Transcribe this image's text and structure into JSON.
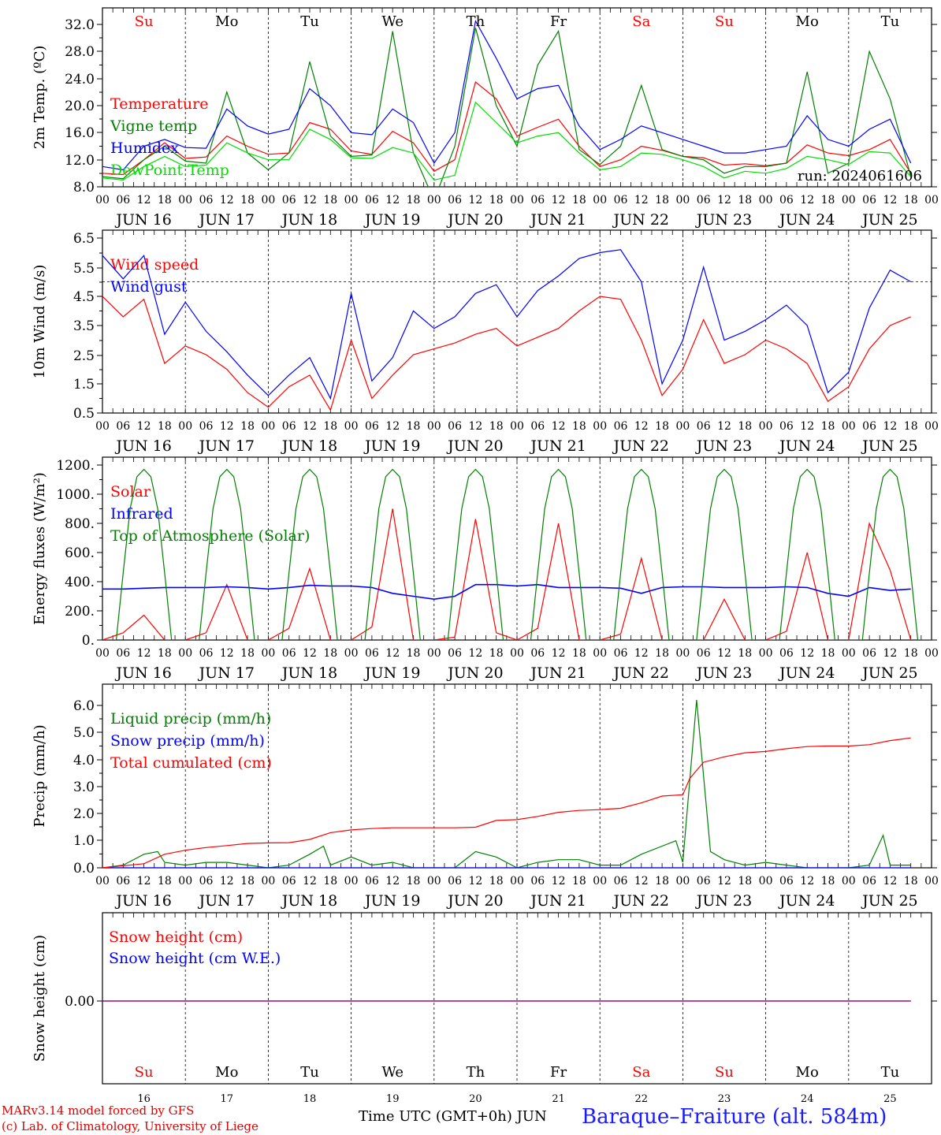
{
  "chart_data": [
    {
      "type": "line",
      "ylabel": "2m Temp. (ºC)",
      "ylim": [
        8.0,
        34.0
      ],
      "yticks": [
        "8.0",
        "12.0",
        "16.0",
        "20.0",
        "24.0",
        "28.0",
        "32.0"
      ],
      "annotation": "run: 2024061606",
      "series": [
        {
          "name": "Temperature",
          "color": "#ff0000",
          "x": [
            0,
            6,
            12,
            18,
            24,
            30,
            36,
            42,
            48,
            54,
            60,
            66,
            72,
            78,
            84,
            90,
            96,
            102,
            108,
            114,
            120,
            126,
            132,
            138,
            144,
            150,
            156,
            162,
            168,
            174,
            180,
            186,
            192,
            198,
            204,
            210,
            216,
            222,
            228,
            234
          ],
          "values": [
            10.0,
            9.8,
            12.0,
            14.5,
            12.2,
            12.4,
            15.5,
            14.0,
            12.8,
            13.0,
            17.5,
            16.5,
            13.3,
            12.8,
            16.2,
            14.5,
            10.3,
            12.0,
            23.5,
            21.0,
            15.5,
            16.8,
            18.0,
            14.0,
            11.0,
            12.0,
            14.0,
            13.4,
            12.5,
            12.3,
            11.2,
            11.4,
            11.1,
            11.5,
            14.2,
            13.0,
            12.6,
            13.5,
            15.0,
            10.0
          ]
        },
        {
          "name": "Vigne temp",
          "color": "#008000",
          "x": [
            0,
            6,
            12,
            18,
            24,
            30,
            36,
            42,
            48,
            54,
            60,
            66,
            72,
            78,
            84,
            90,
            96,
            102,
            108,
            114,
            120,
            126,
            132,
            138,
            144,
            150,
            156,
            162,
            168,
            174,
            180,
            186,
            192,
            198,
            204,
            210,
            216,
            222,
            228,
            234
          ],
          "values": [
            9.5,
            9.2,
            12.0,
            14.0,
            11.8,
            11.5,
            22.0,
            13.0,
            10.5,
            13.0,
            26.5,
            15.5,
            12.5,
            12.7,
            31.0,
            13.0,
            6.0,
            14.0,
            31.5,
            20.0,
            14.0,
            26.0,
            31.0,
            13.5,
            11.3,
            14.0,
            23.0,
            13.5,
            12.5,
            12.0,
            10.0,
            11.0,
            11.0,
            11.5,
            25.0,
            10.0,
            11.5,
            28.0,
            21.0,
            9.5
          ]
        },
        {
          "name": "Humidex",
          "color": "#0000ff",
          "x": [
            0,
            6,
            12,
            18,
            24,
            30,
            36,
            42,
            48,
            54,
            60,
            66,
            72,
            78,
            84,
            90,
            96,
            102,
            108,
            114,
            120,
            126,
            132,
            138,
            144,
            150,
            156,
            162,
            168,
            174,
            180,
            186,
            192,
            198,
            204,
            210,
            216,
            222,
            228,
            234
          ],
          "values": [
            11.0,
            10.5,
            14.0,
            15.0,
            13.8,
            13.7,
            19.5,
            17.0,
            15.8,
            16.5,
            22.5,
            20.0,
            16.0,
            15.7,
            19.5,
            17.5,
            11.5,
            16.0,
            32.5,
            27.0,
            21.0,
            22.5,
            23.0,
            17.0,
            13.5,
            15.0,
            17.0,
            16.0,
            15.0,
            14.0,
            13.0,
            13.0,
            13.5,
            14.0,
            18.5,
            15.0,
            14.0,
            16.5,
            18.0,
            11.5
          ]
        },
        {
          "name": "DewPoint Temp",
          "color": "#00dd00",
          "x": [
            0,
            6,
            12,
            18,
            24,
            30,
            36,
            42,
            48,
            54,
            60,
            66,
            72,
            78,
            84,
            90,
            96,
            102,
            108,
            114,
            120,
            126,
            132,
            138,
            144,
            150,
            156,
            162,
            168,
            174,
            180,
            186,
            192,
            198,
            204,
            210,
            216,
            222,
            228,
            234
          ],
          "values": [
            9.3,
            9.0,
            11.0,
            12.5,
            11.0,
            11.2,
            14.5,
            13.0,
            12.0,
            12.0,
            16.5,
            15.0,
            12.3,
            12.2,
            13.8,
            13.0,
            9.0,
            9.7,
            20.5,
            17.5,
            14.5,
            15.5,
            16.0,
            13.0,
            10.5,
            11.0,
            13.0,
            12.8,
            12.0,
            11.0,
            9.3,
            10.3,
            10.0,
            10.7,
            12.5,
            12.0,
            11.3,
            13.2,
            13.0,
            9.5
          ]
        }
      ]
    },
    {
      "type": "line",
      "ylabel": "10m Wind (m/s)",
      "ylim": [
        0.5,
        6.5
      ],
      "yticks": [
        "0.5",
        "1.5",
        "2.5",
        "3.5",
        "4.5",
        "5.5",
        "6.5"
      ],
      "reference_line": 5.0,
      "series": [
        {
          "name": "Wind speed",
          "color": "#ff0000",
          "x": [
            0,
            6,
            12,
            18,
            24,
            30,
            36,
            42,
            48,
            54,
            60,
            66,
            72,
            78,
            84,
            90,
            96,
            102,
            108,
            114,
            120,
            126,
            132,
            138,
            144,
            150,
            156,
            162,
            168,
            174,
            180,
            186,
            192,
            198,
            204,
            210,
            216,
            222,
            228,
            234
          ],
          "values": [
            4.5,
            3.8,
            4.4,
            2.2,
            2.8,
            2.5,
            2.0,
            1.2,
            0.7,
            1.4,
            1.8,
            0.6,
            3.0,
            1.0,
            1.8,
            2.5,
            2.7,
            2.9,
            3.2,
            3.4,
            2.8,
            3.1,
            3.4,
            4.0,
            4.5,
            4.4,
            3.0,
            1.1,
            2.0,
            3.7,
            2.2,
            2.5,
            3.0,
            2.7,
            2.2,
            0.9,
            1.4,
            2.7,
            3.5,
            3.8
          ]
        },
        {
          "name": "Wind gust",
          "color": "#0000ff",
          "x": [
            0,
            6,
            12,
            18,
            24,
            30,
            36,
            42,
            48,
            54,
            60,
            66,
            72,
            78,
            84,
            90,
            96,
            102,
            108,
            114,
            120,
            126,
            132,
            138,
            144,
            150,
            156,
            162,
            168,
            174,
            180,
            186,
            192,
            198,
            204,
            210,
            216,
            222,
            228,
            234
          ],
          "values": [
            5.9,
            5.1,
            5.9,
            3.2,
            4.3,
            3.3,
            2.6,
            1.8,
            1.1,
            1.8,
            2.4,
            1.0,
            4.6,
            1.6,
            2.4,
            4.0,
            3.4,
            3.8,
            4.6,
            4.9,
            3.8,
            4.7,
            5.2,
            5.8,
            6.0,
            6.1,
            5.0,
            1.5,
            3.0,
            5.5,
            3.0,
            3.3,
            3.7,
            4.2,
            3.5,
            1.2,
            1.9,
            4.1,
            5.4,
            5.0
          ]
        }
      ]
    },
    {
      "type": "line",
      "ylabel": "Energy fluxes (W/m²)",
      "ylim": [
        0,
        1200
      ],
      "yticks": [
        "0.",
        "200.",
        "400.",
        "600.",
        "800.",
        "1000.",
        "1200."
      ],
      "series": [
        {
          "name": "Solar",
          "color": "#ff0000",
          "x": [
            0,
            6,
            12,
            18,
            24,
            30,
            36,
            42,
            48,
            54,
            60,
            66,
            72,
            78,
            84,
            90,
            96,
            102,
            108,
            114,
            120,
            126,
            132,
            138,
            144,
            150,
            156,
            162,
            168,
            174,
            180,
            186,
            192,
            198,
            204,
            210,
            216,
            222,
            228,
            234
          ],
          "values": [
            0,
            50,
            170,
            0,
            0,
            50,
            380,
            0,
            0,
            80,
            490,
            0,
            0,
            90,
            900,
            0,
            0,
            20,
            830,
            50,
            0,
            80,
            800,
            0,
            0,
            40,
            560,
            0,
            0,
            0,
            280,
            0,
            0,
            60,
            600,
            0,
            0,
            800,
            480,
            0
          ]
        },
        {
          "name": "Infrared",
          "color": "#0000ff",
          "x": [
            0,
            6,
            12,
            18,
            24,
            30,
            36,
            42,
            48,
            54,
            60,
            66,
            72,
            78,
            84,
            90,
            96,
            102,
            108,
            114,
            120,
            126,
            132,
            138,
            144,
            150,
            156,
            162,
            168,
            174,
            180,
            186,
            192,
            198,
            204,
            210,
            216,
            222,
            228,
            234
          ],
          "values": [
            350,
            350,
            355,
            360,
            360,
            360,
            365,
            360,
            350,
            360,
            375,
            370,
            370,
            360,
            320,
            300,
            280,
            300,
            380,
            380,
            370,
            380,
            360,
            360,
            360,
            355,
            320,
            360,
            365,
            365,
            360,
            360,
            360,
            365,
            360,
            320,
            300,
            360,
            340,
            350
          ]
        },
        {
          "name": "Top of Atmosphere (Solar)",
          "color": "#008000",
          "x": [
            0,
            4,
            6,
            8,
            10,
            12,
            14,
            16,
            18,
            20,
            24
          ],
          "values": [
            0,
            0,
            460,
            900,
            1120,
            1170,
            1120,
            900,
            460,
            0,
            0
          ],
          "repeat_daily": 10
        }
      ]
    },
    {
      "type": "line",
      "ylabel": "Precip (mm/h)",
      "ylim": [
        0,
        6.5
      ],
      "yticks": [
        "0.0",
        "1.0",
        "2.0",
        "3.0",
        "4.0",
        "5.0",
        "6.0"
      ],
      "series": [
        {
          "name": "Liquid precip (mm/h)",
          "color": "#008000",
          "x": [
            0,
            6,
            12,
            16,
            18,
            24,
            30,
            36,
            42,
            48,
            54,
            60,
            64,
            66,
            72,
            78,
            84,
            90,
            96,
            102,
            108,
            114,
            120,
            126,
            132,
            138,
            144,
            150,
            156,
            162,
            166,
            168,
            172,
            176,
            180,
            186,
            192,
            198,
            204,
            210,
            216,
            222,
            226,
            228,
            234
          ],
          "values": [
            0,
            0.1,
            0.5,
            0.6,
            0.2,
            0.1,
            0.2,
            0.2,
            0.1,
            0.0,
            0.1,
            0.5,
            0.8,
            0.1,
            0.4,
            0.1,
            0.2,
            0.0,
            0.0,
            0.0,
            0.6,
            0.4,
            0.0,
            0.2,
            0.3,
            0.3,
            0.1,
            0.1,
            0.5,
            0.8,
            1.0,
            0.2,
            6.2,
            0.6,
            0.3,
            0.1,
            0.2,
            0.1,
            0.0,
            0.0,
            0.0,
            0.1,
            1.2,
            0.1,
            0.1
          ]
        },
        {
          "name": "Snow precip (mm/h)",
          "color": "#0000ff",
          "x": [
            0,
            234
          ],
          "values": [
            0,
            0
          ]
        },
        {
          "name": "Total cumulated (cm)",
          "color": "#ff0000",
          "x": [
            0,
            12,
            18,
            24,
            30,
            36,
            42,
            48,
            54,
            60,
            66,
            72,
            78,
            84,
            90,
            96,
            102,
            108,
            114,
            120,
            126,
            132,
            138,
            144,
            150,
            156,
            162,
            168,
            170,
            172,
            174,
            180,
            186,
            192,
            198,
            204,
            210,
            216,
            222,
            228,
            234
          ],
          "values": [
            0,
            0.15,
            0.5,
            0.65,
            0.75,
            0.82,
            0.9,
            0.92,
            0.93,
            1.05,
            1.3,
            1.4,
            1.45,
            1.48,
            1.48,
            1.48,
            1.48,
            1.5,
            1.75,
            1.78,
            1.9,
            2.05,
            2.12,
            2.15,
            2.2,
            2.4,
            2.65,
            2.7,
            3.3,
            3.6,
            3.9,
            4.1,
            4.25,
            4.3,
            4.4,
            4.48,
            4.5,
            4.5,
            4.55,
            4.7,
            4.8
          ]
        }
      ]
    },
    {
      "type": "line",
      "ylabel": "Snow height (cm)",
      "ylim": [
        -1,
        1
      ],
      "yticks": [
        "0.00"
      ],
      "series": [
        {
          "name": "Snow height (cm)",
          "color": "#ff0000",
          "x": [
            0,
            234
          ],
          "values": [
            0,
            0
          ]
        },
        {
          "name": "Snow height (cm W.E.)",
          "color": "#0000ff",
          "x": [
            0,
            234
          ],
          "values": [
            0,
            0
          ]
        }
      ]
    }
  ],
  "time_axis": {
    "hour_ticks": [
      "00",
      "06",
      "12",
      "18"
    ],
    "final_tick": "00",
    "date_labels": [
      "JUN 16",
      "JUN 17",
      "JUN 18",
      "JUN 19",
      "JUN 20",
      "JUN 21",
      "JUN 22",
      "JUN 23",
      "JUN 24",
      "JUN 25"
    ],
    "weekdays": [
      {
        "label": "Su",
        "color": "#ff0000"
      },
      {
        "label": "Mo",
        "color": "#000000"
      },
      {
        "label": "Tu",
        "color": "#000000"
      },
      {
        "label": "We",
        "color": "#000000"
      },
      {
        "label": "Th",
        "color": "#000000"
      },
      {
        "label": "Fr",
        "color": "#000000"
      },
      {
        "label": "Sa",
        "color": "#ff0000"
      },
      {
        "label": "Su",
        "color": "#ff0000"
      },
      {
        "label": "Mo",
        "color": "#000000"
      },
      {
        "label": "Tu",
        "color": "#000000"
      }
    ],
    "day_numbers": [
      "16",
      "17",
      "18",
      "19",
      "20",
      "21",
      "22",
      "23",
      "24",
      "25"
    ]
  },
  "footer": {
    "model_credit": "MARv3.14 model forced by GFS",
    "lab_credit": "(c) Lab. of Climatology, University of Liege",
    "time_label": "Time UTC (GMT+0h) JUN",
    "station": "Baraque–Fraiture (alt. 584m)"
  }
}
